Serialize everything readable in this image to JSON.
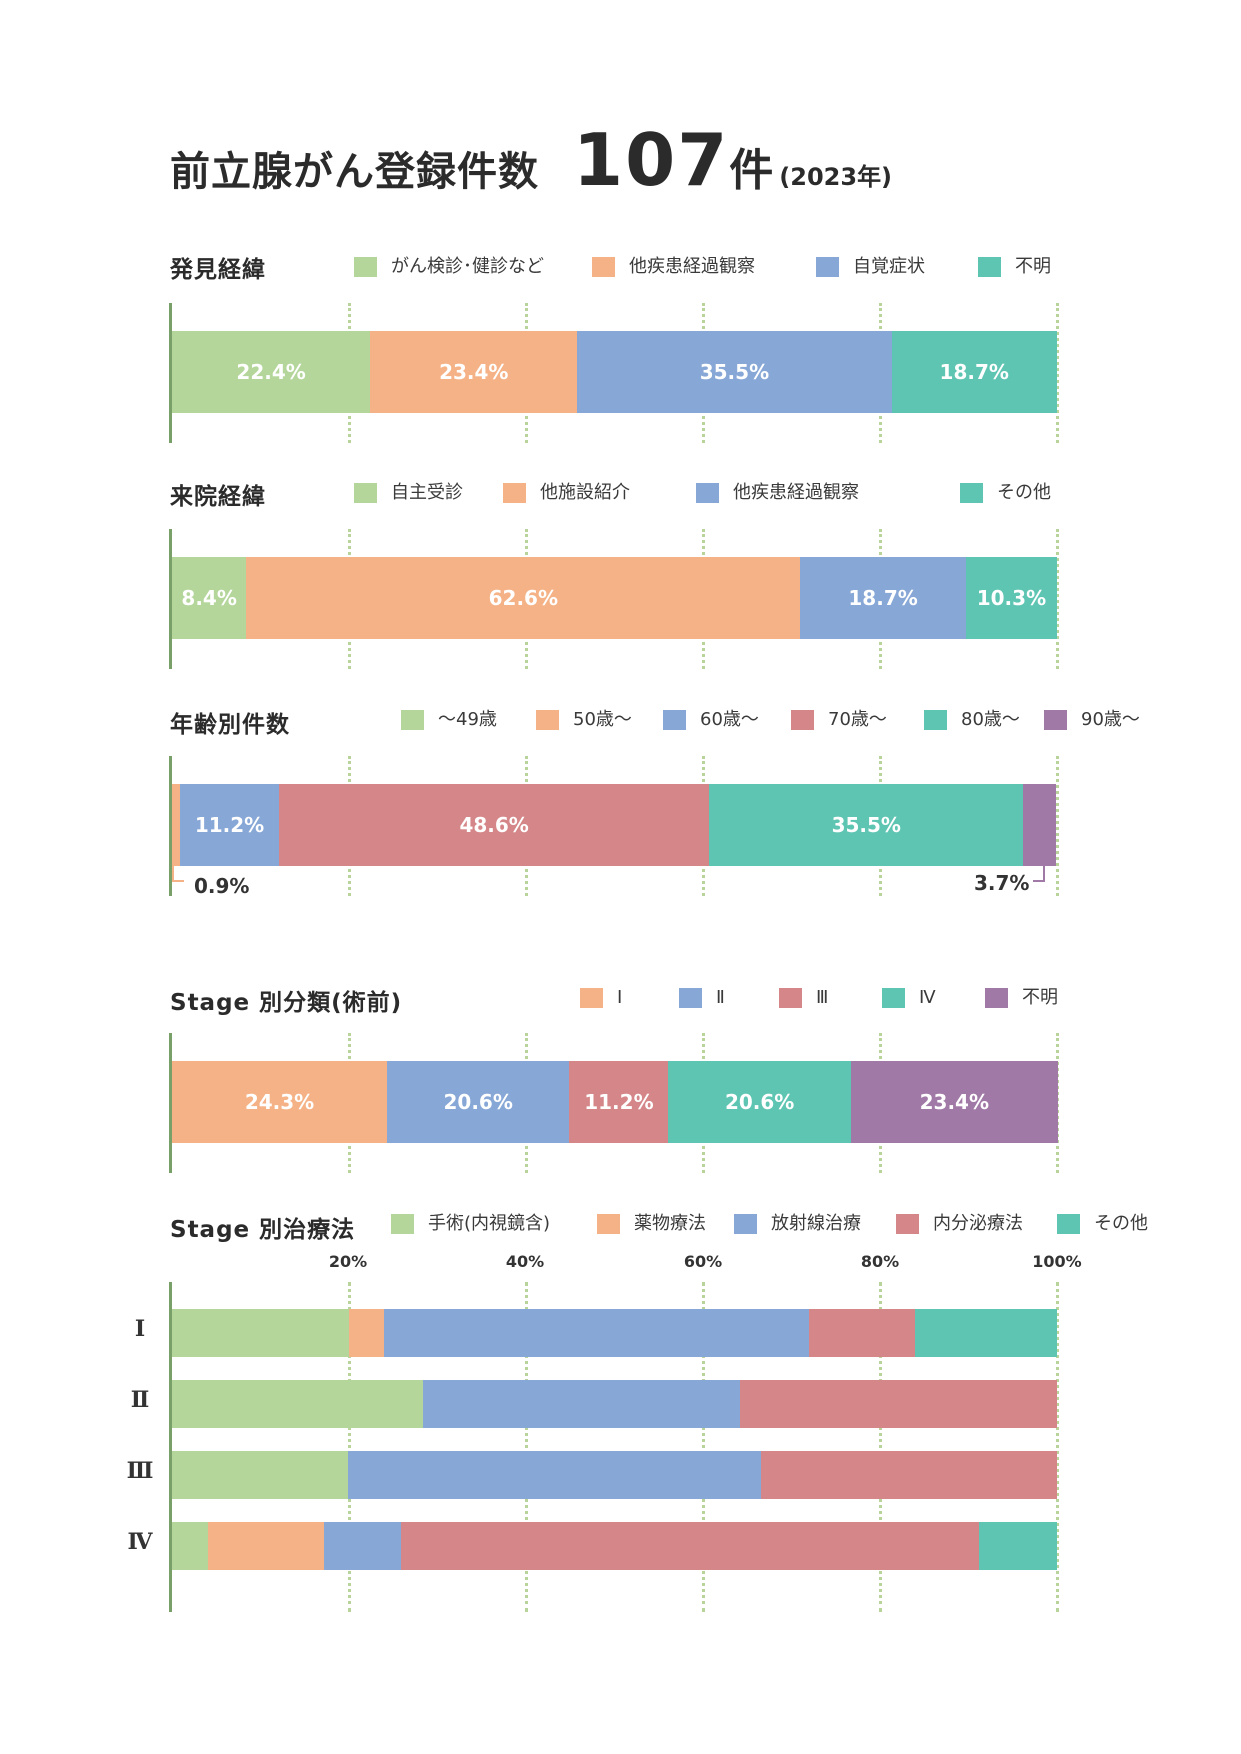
{
  "header": {
    "title": "前立腺がん登録件数",
    "count": "107",
    "count_unit": "件",
    "year": "(2023年)"
  },
  "colors": {
    "green": "#b4d69b",
    "orange": "#f5b286",
    "blue": "#87a7d6",
    "red": "#d58688",
    "teal": "#5fc5b3",
    "purple": "#a179a6",
    "axis": "#7aa06a",
    "grid": "#b8d49a"
  },
  "chart_data": [
    {
      "type": "bar",
      "stacked": true,
      "title": "発見経緯",
      "series": [
        {
          "name": "がん検診･健診など",
          "value": 22.4,
          "label": "22.4%",
          "color": "#b4d69b"
        },
        {
          "name": "他疾患経過観察",
          "value": 23.4,
          "label": "23.4%",
          "color": "#f5b286"
        },
        {
          "name": "自覚症状",
          "value": 35.5,
          "label": "35.5%",
          "color": "#87a7d6"
        },
        {
          "name": "不明",
          "value": 18.7,
          "label": "18.7%",
          "color": "#5fc5b3"
        }
      ]
    },
    {
      "type": "bar",
      "stacked": true,
      "title": "来院経緯",
      "series": [
        {
          "name": "自主受診",
          "value": 8.4,
          "label": "8.4%",
          "color": "#b4d69b"
        },
        {
          "name": "他施設紹介",
          "value": 62.6,
          "label": "62.6%",
          "color": "#f5b286"
        },
        {
          "name": "他疾患経過観察",
          "value": 18.7,
          "label": "18.7%",
          "color": "#87a7d6"
        },
        {
          "name": "その他",
          "value": 10.3,
          "label": "10.3%",
          "color": "#5fc5b3"
        }
      ]
    },
    {
      "type": "bar",
      "stacked": true,
      "title": "年齢別件数",
      "series": [
        {
          "name": "～49歳",
          "value": 0,
          "label": "",
          "color": "#b4d69b"
        },
        {
          "name": "50歳～",
          "value": 0.9,
          "label": "0.9%",
          "color": "#f5b286"
        },
        {
          "name": "60歳～",
          "value": 11.2,
          "label": "11.2%",
          "color": "#87a7d6"
        },
        {
          "name": "70歳～",
          "value": 48.6,
          "label": "48.6%",
          "color": "#d58688"
        },
        {
          "name": "80歳～",
          "value": 35.5,
          "label": "35.5%",
          "color": "#5fc5b3"
        },
        {
          "name": "90歳～",
          "value": 3.7,
          "label": "3.7%",
          "color": "#a179a6"
        }
      ]
    },
    {
      "type": "bar",
      "stacked": true,
      "title": "Stage 別分類(術前)",
      "series": [
        {
          "name": "Ⅰ",
          "value": 24.3,
          "label": "24.3%",
          "color": "#f5b286"
        },
        {
          "name": "Ⅱ",
          "value": 20.6,
          "label": "20.6%",
          "color": "#87a7d6"
        },
        {
          "name": "Ⅲ",
          "value": 11.2,
          "label": "11.2%",
          "color": "#d58688"
        },
        {
          "name": "Ⅳ",
          "value": 20.6,
          "label": "20.6%",
          "color": "#5fc5b3"
        },
        {
          "name": "不明",
          "value": 23.4,
          "label": "23.4%",
          "color": "#a179a6"
        }
      ]
    },
    {
      "type": "bar",
      "stacked": true,
      "title": "Stage 別治療法",
      "x_ticks": [
        "20%",
        "40%",
        "60%",
        "80%",
        "100%"
      ],
      "xlim": [
        0,
        100
      ],
      "categories": [
        "Ⅰ",
        "Ⅱ",
        "Ⅲ",
        "Ⅳ"
      ],
      "series": [
        {
          "name": "手術(内視鏡含)",
          "color": "#b4d69b",
          "values": [
            20.0,
            28.4,
            19.9,
            4.1
          ]
        },
        {
          "name": "薬物療法",
          "color": "#f5b286",
          "values": [
            4.0,
            0,
            0,
            13.1
          ]
        },
        {
          "name": "放射線治療",
          "color": "#87a7d6",
          "values": [
            48.0,
            35.8,
            46.7,
            8.7
          ]
        },
        {
          "name": "内分泌療法",
          "color": "#d58688",
          "values": [
            12.0,
            35.8,
            33.4,
            65.3
          ]
        },
        {
          "name": "その他",
          "color": "#5fc5b3",
          "values": [
            16.0,
            0,
            0,
            8.8
          ]
        }
      ]
    }
  ]
}
